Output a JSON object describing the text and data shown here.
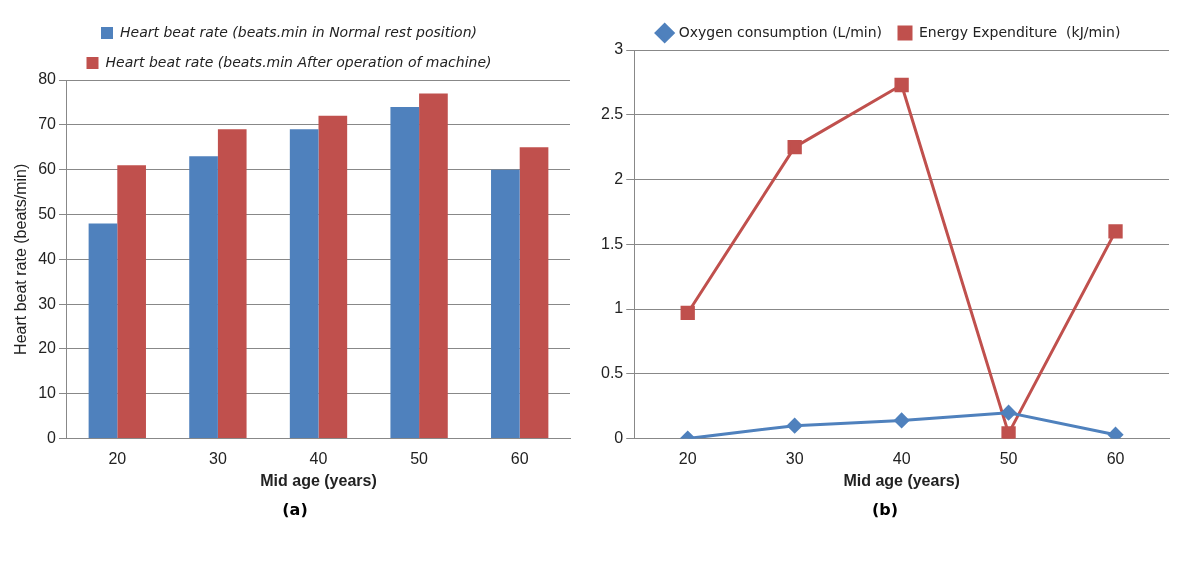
{
  "chart_data": [
    {
      "type": "bar",
      "categories": [
        "20",
        "30",
        "40",
        "50",
        "60"
      ],
      "xlabel": "Mid age (years)",
      "ylabel": "Heart beat rate (beats/min)",
      "ylim": [
        0,
        80
      ],
      "yticks": [
        0,
        10,
        20,
        30,
        40,
        50,
        60,
        70,
        80
      ],
      "grid": "y",
      "legend": "top",
      "annotations": [
        "(a)"
      ],
      "series": [
        {
          "name": "Heart beat rate (beats.min in Normal rest position)",
          "color": "#4f81bd",
          "values": [
            48,
            63,
            69,
            74,
            60
          ]
        },
        {
          "name": "Heart beat rate (beats.min After operation of machine)",
          "color": "#c0504d",
          "values": [
            61,
            69,
            72,
            77,
            65
          ]
        }
      ]
    },
    {
      "type": "line",
      "categories": [
        "20",
        "30",
        "40",
        "50",
        "60"
      ],
      "xlabel": "Mid age (years)",
      "ylim": [
        0,
        3
      ],
      "yticks": [
        0,
        0.5,
        1,
        1.5,
        2,
        2.5,
        3
      ],
      "grid": "y",
      "legend": "top",
      "annotations": [
        "(b)"
      ],
      "series": [
        {
          "name": "Oxygen consumption (L/min)",
          "color": "#4f81bd",
          "marker": "diamond",
          "values": [
            0,
            0.1,
            0.14,
            0.2,
            0.03
          ]
        },
        {
          "name": "Energy Expenditure  (kJ/min)",
          "color": "#c0504d",
          "marker": "square",
          "values": [
            0.97,
            2.25,
            2.73,
            0.04,
            1.6
          ]
        }
      ]
    }
  ]
}
